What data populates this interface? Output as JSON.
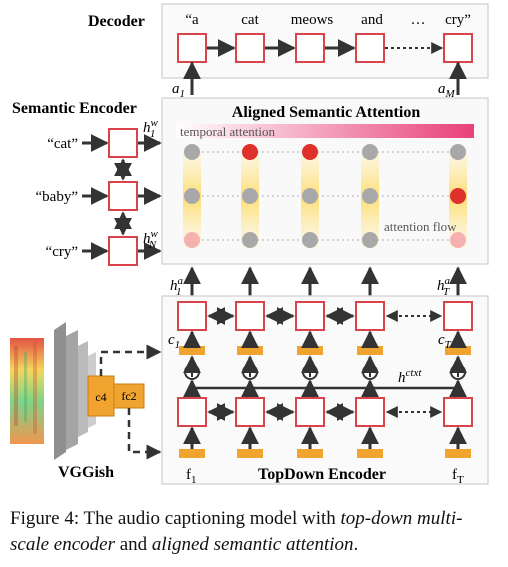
{
  "decoder": {
    "title": "Decoder",
    "words": [
      "“a",
      "cat",
      "meows",
      "and",
      "…",
      "cry”"
    ],
    "a_first": "a",
    "a_first_sub": "1",
    "a_last": "a",
    "a_last_sub": "M"
  },
  "semantic_encoder": {
    "title": "Semantic Encoder",
    "inputs": [
      "“cat”",
      "“baby”",
      "“cry”"
    ],
    "h_top": "h",
    "h_top_sup": "w",
    "h_top_sub": "1",
    "h_bottom": "h",
    "h_bottom_sup": "w",
    "h_bottom_sub": "N"
  },
  "attention": {
    "title": "Aligned Semantic Attention",
    "temporal_label": "temporal attention",
    "flow_label": "attention flow"
  },
  "encoder": {
    "title": "TopDown Encoder",
    "h_first": "h",
    "h_first_sup": "a",
    "h_first_sub": "1",
    "h_last": "h",
    "h_last_sup": "a",
    "h_last_sub": "T",
    "c_first": "c",
    "c_first_sub": "1",
    "c_last": "c",
    "c_last_sub": "T",
    "ctxt": "h",
    "ctxt_sup": "ctxt",
    "f_first": "f",
    "f_first_sub": "1",
    "f_last": "f",
    "f_last_sub": "T",
    "plus": "⊕"
  },
  "vggish": {
    "title": "VGGish",
    "c4": "c4",
    "fc2": "fc2"
  },
  "caption": {
    "prefix": "Figure 4: The audio captioning model with ",
    "em1": "top-down multi-scale encoder",
    "mid": " and ",
    "em2": "aligned semantic attention",
    "suffix": "."
  },
  "colors": {
    "node_border": "#d9434b",
    "orange": "#f0a32f",
    "gray_dot": "#a8a8a8",
    "red_dot": "#e0302c",
    "pink_dot": "#f5b0b0",
    "panel_border": "#d8d8d8",
    "arrow": "#333333"
  }
}
